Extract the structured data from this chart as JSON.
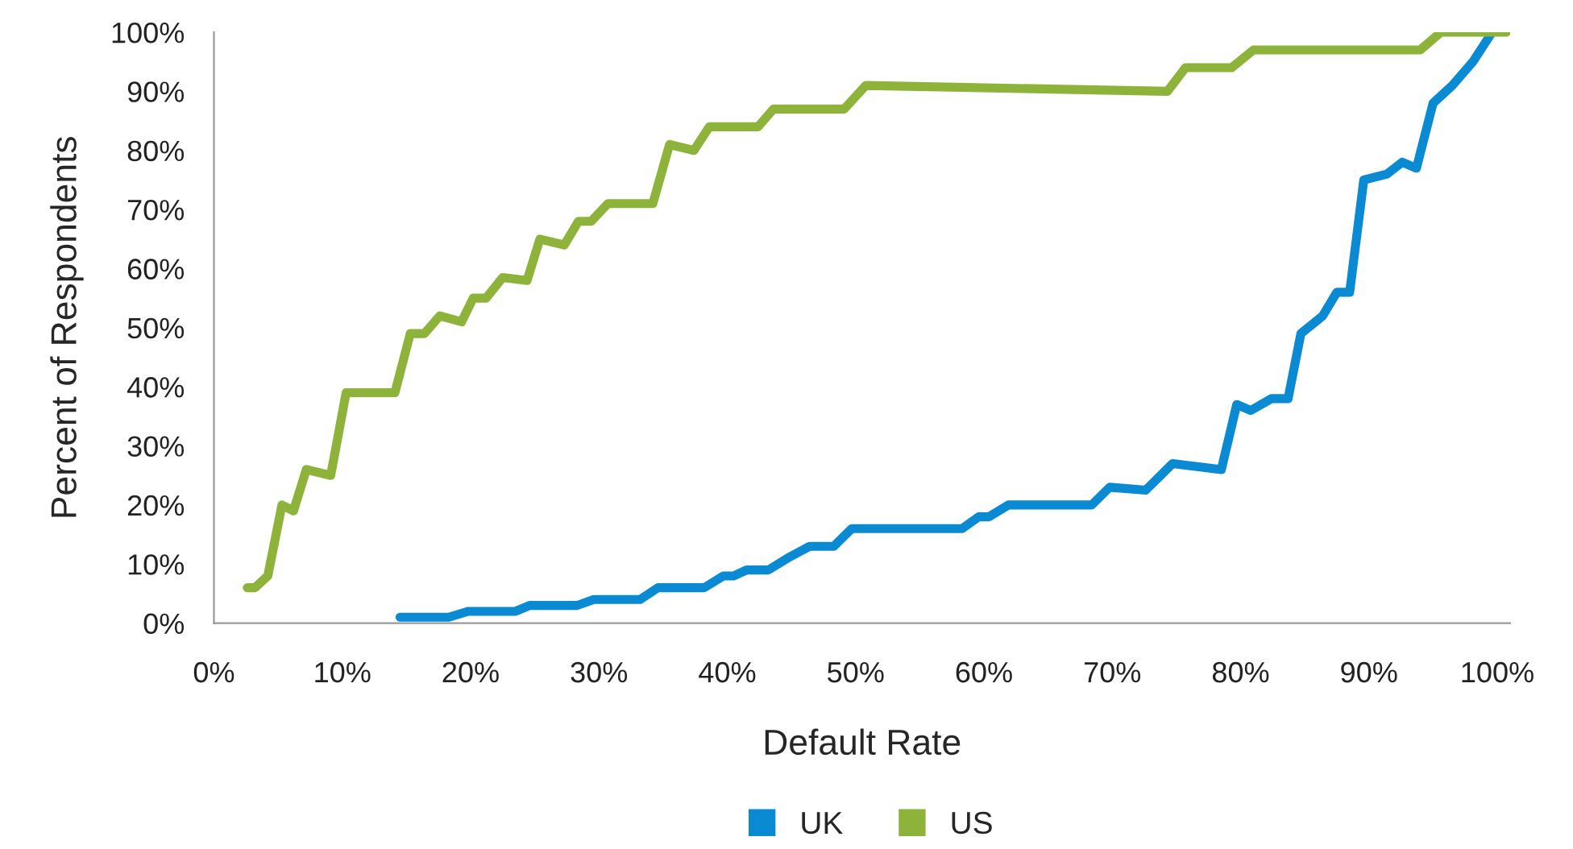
{
  "chart_data": {
    "type": "line",
    "xlabel": "Default Rate",
    "ylabel": "Percent of Respondents",
    "xlim": [
      0,
      101
    ],
    "ylim": [
      0,
      100
    ],
    "xticks": [
      {
        "value": 0,
        "label": "0%"
      },
      {
        "value": 10,
        "label": "10%"
      },
      {
        "value": 20,
        "label": "20%"
      },
      {
        "value": 30,
        "label": "30%"
      },
      {
        "value": 40,
        "label": "40%"
      },
      {
        "value": 50,
        "label": "50%"
      },
      {
        "value": 60,
        "label": "60%"
      },
      {
        "value": 70,
        "label": "70%"
      },
      {
        "value": 80,
        "label": "80%"
      },
      {
        "value": 90,
        "label": "90%"
      },
      {
        "value": 100,
        "label": "100%"
      }
    ],
    "yticks": [
      {
        "value": 0,
        "label": "0%"
      },
      {
        "value": 10,
        "label": "10%"
      },
      {
        "value": 20,
        "label": "20%"
      },
      {
        "value": 30,
        "label": "30%"
      },
      {
        "value": 40,
        "label": "40%"
      },
      {
        "value": 50,
        "label": "50%"
      },
      {
        "value": 60,
        "label": "60%"
      },
      {
        "value": 70,
        "label": "70%"
      },
      {
        "value": 80,
        "label": "80%"
      },
      {
        "value": 90,
        "label": "90%"
      },
      {
        "value": 100,
        "label": "100%"
      }
    ],
    "grid": false,
    "legend": "bottom",
    "marker": "none",
    "line_style": "solid",
    "series": [
      {
        "name": "UK",
        "color": "#0a8ad2",
        "x": [
          14.5,
          18.3,
          19.8,
          23.5,
          24.6,
          28.3,
          29.6,
          33.2,
          34.6,
          38.2,
          39.7,
          40.5,
          41.5,
          43.2,
          44.7,
          46.4,
          48.3,
          49.7,
          58.3,
          59.6,
          60.4,
          61.9,
          68.4,
          69.8,
          72.6,
          74.7,
          78.5,
          79.7,
          80.8,
          82.4,
          83.7,
          84.7,
          86.4,
          87.5,
          88.5,
          89.6,
          91.4,
          92.6,
          93.7,
          95,
          96.5,
          98.1,
          99.6
        ],
        "values": [
          1,
          1,
          2,
          2,
          3,
          3,
          4,
          4,
          6,
          6,
          8,
          8,
          9,
          9,
          11,
          13,
          13,
          16,
          16,
          18,
          18,
          20,
          20,
          23,
          22.5,
          27,
          26,
          37,
          36,
          38,
          38,
          49,
          52,
          56,
          56,
          75,
          76,
          78,
          77,
          88,
          91,
          95,
          100
        ]
      },
      {
        "name": "US",
        "color": "#8db33a",
        "x": [
          2.6,
          3.2,
          4.2,
          5.3,
          6.2,
          7.2,
          9.1,
          10.3,
          14.1,
          15.3,
          16.4,
          17.6,
          19.3,
          20.2,
          21.2,
          22.5,
          24.4,
          25.4,
          27.3,
          28.4,
          29.4,
          30.7,
          34.2,
          35.5,
          37.4,
          38.6,
          42.4,
          43.6,
          49.1,
          50.8,
          74.3,
          75.7,
          79.3,
          81,
          94,
          95.6,
          100.7
        ],
        "values": [
          6,
          6,
          8,
          20,
          19,
          26,
          25,
          39,
          39,
          49,
          49,
          52,
          51,
          55,
          55,
          58.5,
          58,
          65,
          64,
          68,
          68,
          71,
          71,
          81,
          80,
          84,
          84,
          87,
          87,
          91,
          90,
          94,
          94,
          97,
          97,
          100,
          100
        ]
      }
    ]
  }
}
